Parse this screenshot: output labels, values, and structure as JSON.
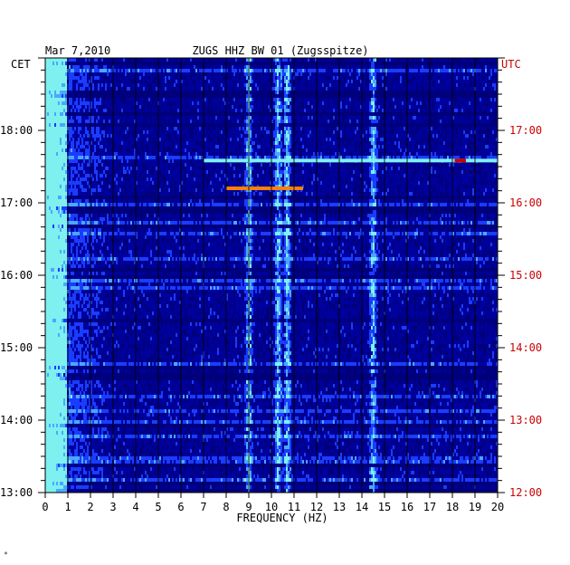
{
  "chart_data": {
    "type": "heatmap",
    "date": "Mar 7,2010",
    "title": "ZUGS HHZ BW 01 (Zugsspitze)",
    "left_axis_label": "CET",
    "right_axis_label": "UTC",
    "xlabel": "FREQUENCY (HZ)",
    "xlim": [
      0,
      20
    ],
    "x_ticks": [
      "0",
      "1",
      "2",
      "3",
      "4",
      "5",
      "6",
      "7",
      "8",
      "9",
      "10",
      "11",
      "12",
      "13",
      "14",
      "15",
      "16",
      "17",
      "18",
      "19",
      "20"
    ],
    "left_ticks": [
      "18:00",
      "17:00",
      "16:00",
      "15:00",
      "14:00",
      "13:00"
    ],
    "right_ticks": [
      "17:00",
      "16:00",
      "15:00",
      "14:00",
      "13:00",
      "12:00"
    ],
    "colormap": [
      "#00007a",
      "#0000cc",
      "#1a3cff",
      "#4aa8ff",
      "#7ef0f0",
      "#ffff40",
      "#ff8000",
      "#cc0000"
    ],
    "grid": true,
    "dominant_frequency_bands_hz": [
      0.4,
      9.0,
      10.3,
      10.7,
      14.5
    ],
    "notable_events": [
      {
        "time_cet": "17:12",
        "freq_range_hz": [
          8.0,
          11.4
        ],
        "note": "broadband red line"
      },
      {
        "time_cet": "17:35",
        "freq_range_hz": [
          7.0,
          20.0
        ],
        "note": "cyan line with red at 18.3 Hz"
      }
    ]
  },
  "footer": {
    "mark": "*"
  }
}
